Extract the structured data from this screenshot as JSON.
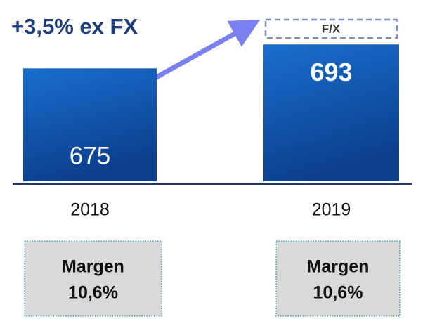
{
  "chart_data": {
    "type": "bar",
    "title": "+3,5% ex FX",
    "annotation": "F/X",
    "categories": [
      "2018",
      "2019"
    ],
    "values": [
      675,
      693
    ],
    "ylim": [
      590,
      700
    ],
    "margins": [
      {
        "label": "Margen",
        "value": "10,6%"
      },
      {
        "label": "Margen",
        "value": "10,6%"
      }
    ]
  }
}
